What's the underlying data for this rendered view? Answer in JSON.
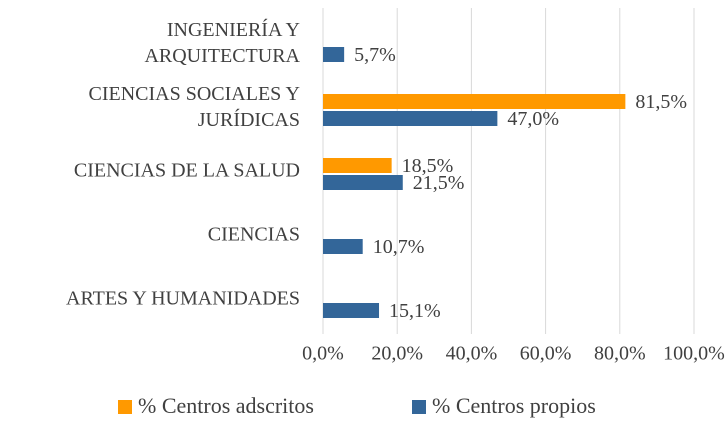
{
  "chart_data": {
    "type": "hbar",
    "categories": [
      "INGENIERÍA Y\nARQUITECTURA",
      "CIENCIAS SOCIALES Y\nJURÍDICAS",
      "CIENCIAS DE LA SALUD",
      "CIENCIAS",
      "ARTES Y HUMANIDADES"
    ],
    "series": [
      {
        "name": "% Centros adscritos",
        "color": "#ff9900",
        "values": [
          null,
          81.5,
          18.5,
          null,
          null
        ],
        "value_labels": [
          null,
          "81,5%",
          "18,5%",
          null,
          null
        ]
      },
      {
        "name": "% Centros propios",
        "color": "#336699",
        "values": [
          5.7,
          47.0,
          21.5,
          10.7,
          15.1
        ],
        "value_labels": [
          "5,7%",
          "47,0%",
          "21,5%",
          "10,7%",
          "15,1%"
        ]
      }
    ],
    "xlim": [
      0,
      100
    ],
    "xticks": [
      {
        "value": 0,
        "label": "0,0%"
      },
      {
        "value": 20,
        "label": "20,0%"
      },
      {
        "value": 40,
        "label": "40,0%"
      },
      {
        "value": 60,
        "label": "60,0%"
      },
      {
        "value": 80,
        "label": "80,0%"
      },
      {
        "value": 100,
        "label": "100,0%"
      }
    ],
    "grid": true,
    "legend": "bottom"
  }
}
